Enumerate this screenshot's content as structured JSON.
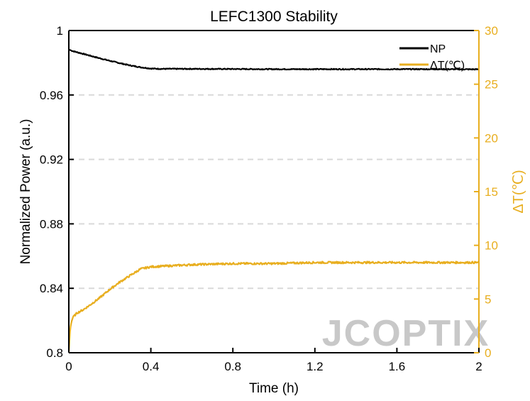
{
  "chart_data": {
    "type": "line",
    "title": "LEFC1300 Stability",
    "xlabel": "Time (h)",
    "ylabel_left": "Normalized Power (a.u.)",
    "ylabel_right": "ΔT(℃)",
    "x_ticks": [
      "0",
      "0.4",
      "0.8",
      "1.2",
      "1.6",
      "2"
    ],
    "x_tick_values": [
      0,
      0.4,
      0.8,
      1.2,
      1.6,
      2
    ],
    "xlim": [
      0,
      2
    ],
    "y_left_ticks": [
      "0.8",
      "0.84",
      "0.88",
      "0.92",
      "0.96",
      "1"
    ],
    "y_left_tick_values": [
      0.8,
      0.84,
      0.88,
      0.92,
      0.96,
      1.0
    ],
    "ylim_left": [
      0.8,
      1.0
    ],
    "y_right_ticks": [
      "0",
      "5",
      "10",
      "15",
      "20",
      "25",
      "30"
    ],
    "y_right_tick_values": [
      0,
      5,
      10,
      15,
      20,
      25,
      30
    ],
    "ylim_right": [
      0,
      30
    ],
    "grid": "horizontal dashed (left axis)",
    "legend_position": "top-right",
    "series": [
      {
        "name": "NP",
        "axis": "left",
        "color": "#000000",
        "x": [
          0,
          0.02,
          0.05,
          0.1,
          0.15,
          0.2,
          0.25,
          0.3,
          0.35,
          0.4,
          0.45,
          0.5,
          0.6,
          0.8,
          1.0,
          1.2,
          1.4,
          1.6,
          1.8,
          2.0
        ],
        "values": [
          0.9882,
          0.9872,
          0.9862,
          0.9845,
          0.9828,
          0.9812,
          0.9797,
          0.9783,
          0.9772,
          0.9764,
          0.9762,
          0.9762,
          0.9762,
          0.9761,
          0.976,
          0.976,
          0.976,
          0.976,
          0.976,
          0.9759
        ]
      },
      {
        "name": "ΔT(℃)",
        "axis": "right",
        "color": "#E8AE1F",
        "x": [
          0,
          0.005,
          0.01,
          0.02,
          0.04,
          0.07,
          0.1,
          0.15,
          0.2,
          0.25,
          0.3,
          0.35,
          0.4,
          0.5,
          0.6,
          0.8,
          1.0,
          1.2,
          1.4,
          1.6,
          1.8,
          2.0
        ],
        "values": [
          0,
          1.8,
          2.7,
          3.3,
          3.7,
          4.0,
          4.4,
          5.1,
          5.9,
          6.6,
          7.2,
          7.8,
          8.0,
          8.1,
          8.2,
          8.3,
          8.3,
          8.4,
          8.4,
          8.4,
          8.4,
          8.4
        ]
      }
    ]
  },
  "watermark": "JCOPTIX",
  "colors": {
    "axis": "#000000",
    "right_axis": "#E8AE1F",
    "grid": "#d9d9d9",
    "watermark": "#c8c8c8"
  }
}
